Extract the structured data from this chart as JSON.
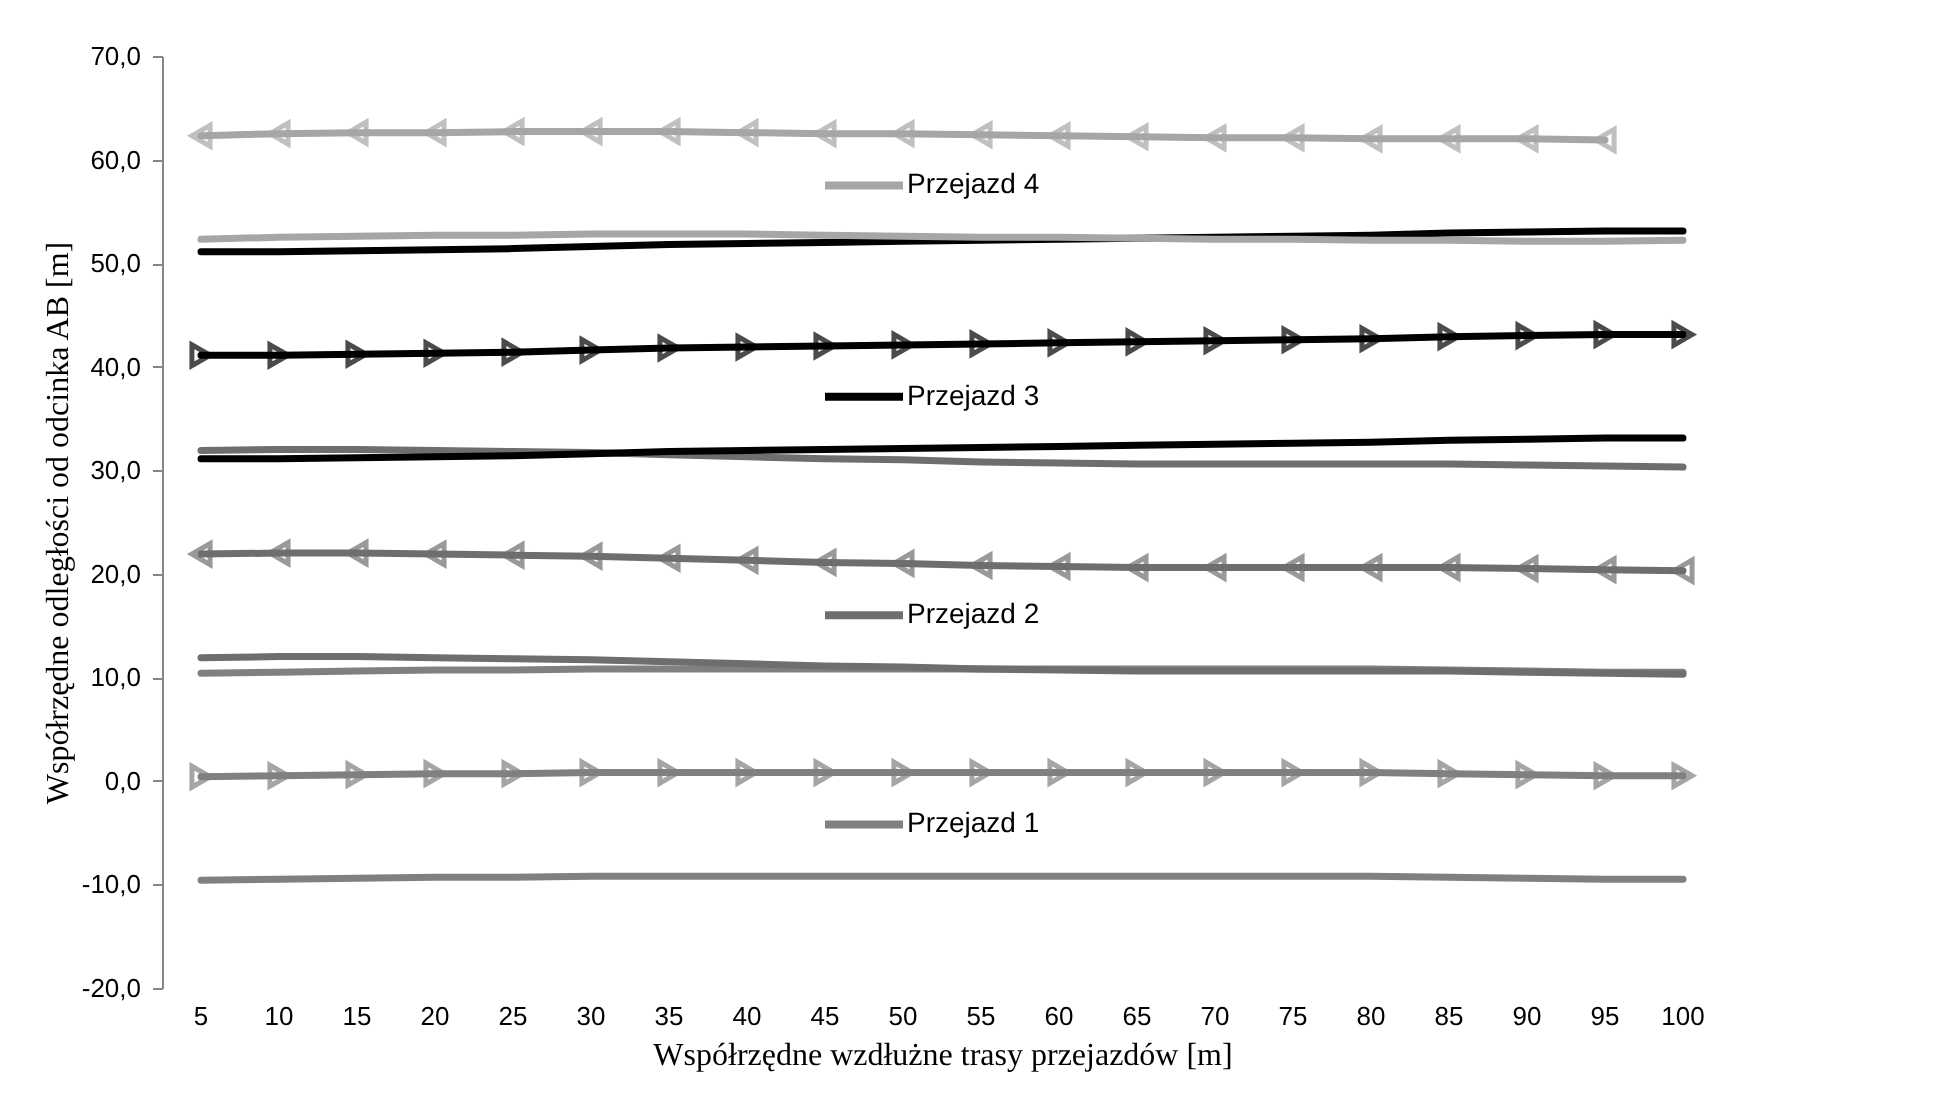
{
  "chart_data": {
    "type": "line",
    "xlabel": "Współrzędne wzdłużne trasy przejazdów [m]",
    "ylabel": "Współrzędne odległości od odcinka AB [m]",
    "categories": [
      "5",
      "10",
      "15",
      "20",
      "25",
      "30",
      "35",
      "40",
      "45",
      "50",
      "55",
      "60",
      "65",
      "70",
      "75",
      "80",
      "85",
      "90",
      "95",
      "100"
    ],
    "ylim": [
      -20,
      70
    ],
    "legend": "center",
    "yticks": [
      {
        "value": -20,
        "label": "-20,0"
      },
      {
        "value": -10,
        "label": "-10,0"
      },
      {
        "value": 0,
        "label": "0,0"
      },
      {
        "value": 10,
        "label": "10,0"
      },
      {
        "value": 20,
        "label": "20,0"
      },
      {
        "value": 30,
        "label": "30,0"
      },
      {
        "value": 40,
        "label": "40,0"
      },
      {
        "value": 50,
        "label": "50,0"
      },
      {
        "value": 60,
        "label": "60,0"
      },
      {
        "value": 70,
        "label": "70,0"
      }
    ],
    "series": [
      {
        "color": "#808080",
        "values": [
          -9.6,
          -9.5,
          -9.4,
          -9.3,
          -9.3,
          -9.2,
          -9.2,
          -9.2,
          -9.2,
          -9.2,
          -9.2,
          -9.2,
          -9.2,
          -9.2,
          -9.2,
          -9.2,
          -9.3,
          -9.4,
          -9.5,
          -9.5
        ]
      },
      {
        "name": "Przejazd 1",
        "color": "#808080",
        "marker": "triangle",
        "values": [
          0.4,
          0.5,
          0.6,
          0.7,
          0.7,
          0.8,
          0.8,
          0.8,
          0.8,
          0.8,
          0.8,
          0.8,
          0.8,
          0.8,
          0.8,
          0.8,
          0.7,
          0.6,
          0.5,
          0.5
        ]
      },
      {
        "color": "#808080",
        "values": [
          10.4,
          10.5,
          10.6,
          10.7,
          10.7,
          10.8,
          10.8,
          10.8,
          10.8,
          10.8,
          10.8,
          10.8,
          10.8,
          10.8,
          10.8,
          10.8,
          10.7,
          10.6,
          10.5,
          10.5
        ]
      },
      {
        "color": "#6e6e6e",
        "values": [
          11.9,
          12.0,
          12.0,
          11.9,
          11.8,
          11.7,
          11.5,
          11.3,
          11.1,
          11.0,
          10.8,
          10.7,
          10.6,
          10.6,
          10.6,
          10.6,
          10.6,
          10.5,
          10.4,
          10.3
        ]
      },
      {
        "name": "Przejazd 2",
        "color": "#6e6e6e",
        "marker": "triangle",
        "x": [
          "100",
          "95",
          "90",
          "85",
          "80",
          "75",
          "70",
          "65",
          "60",
          "55",
          "50",
          "45",
          "40",
          "35",
          "30",
          "25",
          "20",
          "15",
          "10",
          "5"
        ],
        "values": [
          20.3,
          20.4,
          20.5,
          20.6,
          20.6,
          20.6,
          20.6,
          20.6,
          20.7,
          20.8,
          21.0,
          21.1,
          21.3,
          21.5,
          21.7,
          21.8,
          21.9,
          22.0,
          22.0,
          21.9
        ]
      },
      {
        "color": "#6e6e6e",
        "values": [
          31.9,
          32.0,
          32.0,
          31.9,
          31.8,
          31.7,
          31.5,
          31.3,
          31.1,
          31.0,
          30.8,
          30.7,
          30.6,
          30.6,
          30.6,
          30.6,
          30.6,
          30.5,
          30.4,
          30.3
        ]
      },
      {
        "color": "#000000",
        "values": [
          31.1,
          31.1,
          31.2,
          31.3,
          31.4,
          31.6,
          31.8,
          31.9,
          32.0,
          32.1,
          32.2,
          32.3,
          32.4,
          32.5,
          32.6,
          32.7,
          32.9,
          33.0,
          33.1,
          33.1
        ]
      },
      {
        "name": "Przejazd 3",
        "color": "#000000",
        "marker": "triangle",
        "values": [
          41.1,
          41.1,
          41.2,
          41.3,
          41.4,
          41.6,
          41.8,
          41.9,
          42.0,
          42.1,
          42.2,
          42.3,
          42.4,
          42.5,
          42.6,
          42.7,
          42.9,
          43.0,
          43.1,
          43.1
        ]
      },
      {
        "color": "#000000",
        "values": [
          51.1,
          51.1,
          51.2,
          51.3,
          51.4,
          51.6,
          51.8,
          51.9,
          52.0,
          52.1,
          52.2,
          52.3,
          52.4,
          52.5,
          52.6,
          52.7,
          52.9,
          53.0,
          53.1,
          53.1
        ]
      },
      {
        "color": "#a6a6a6",
        "values": [
          52.3,
          52.5,
          52.6,
          52.7,
          52.7,
          52.8,
          52.8,
          52.8,
          52.7,
          52.6,
          52.5,
          52.5,
          52.4,
          52.3,
          52.3,
          52.2,
          52.2,
          52.1,
          52.1,
          52.2
        ]
      },
      {
        "name": "Przejazd 4",
        "color": "#a6a6a6",
        "marker": "triangle",
        "x": [
          "95",
          "90",
          "85",
          "80",
          "75",
          "70",
          "65",
          "60",
          "55",
          "50",
          "45",
          "40",
          "35",
          "30",
          "25",
          "20",
          "15",
          "10",
          "5"
        ],
        "values": [
          61.9,
          62.0,
          62.0,
          62.0,
          62.1,
          62.1,
          62.2,
          62.3,
          62.4,
          62.5,
          62.5,
          62.6,
          62.7,
          62.7,
          62.7,
          62.6,
          62.6,
          62.5,
          62.3
        ]
      }
    ]
  }
}
